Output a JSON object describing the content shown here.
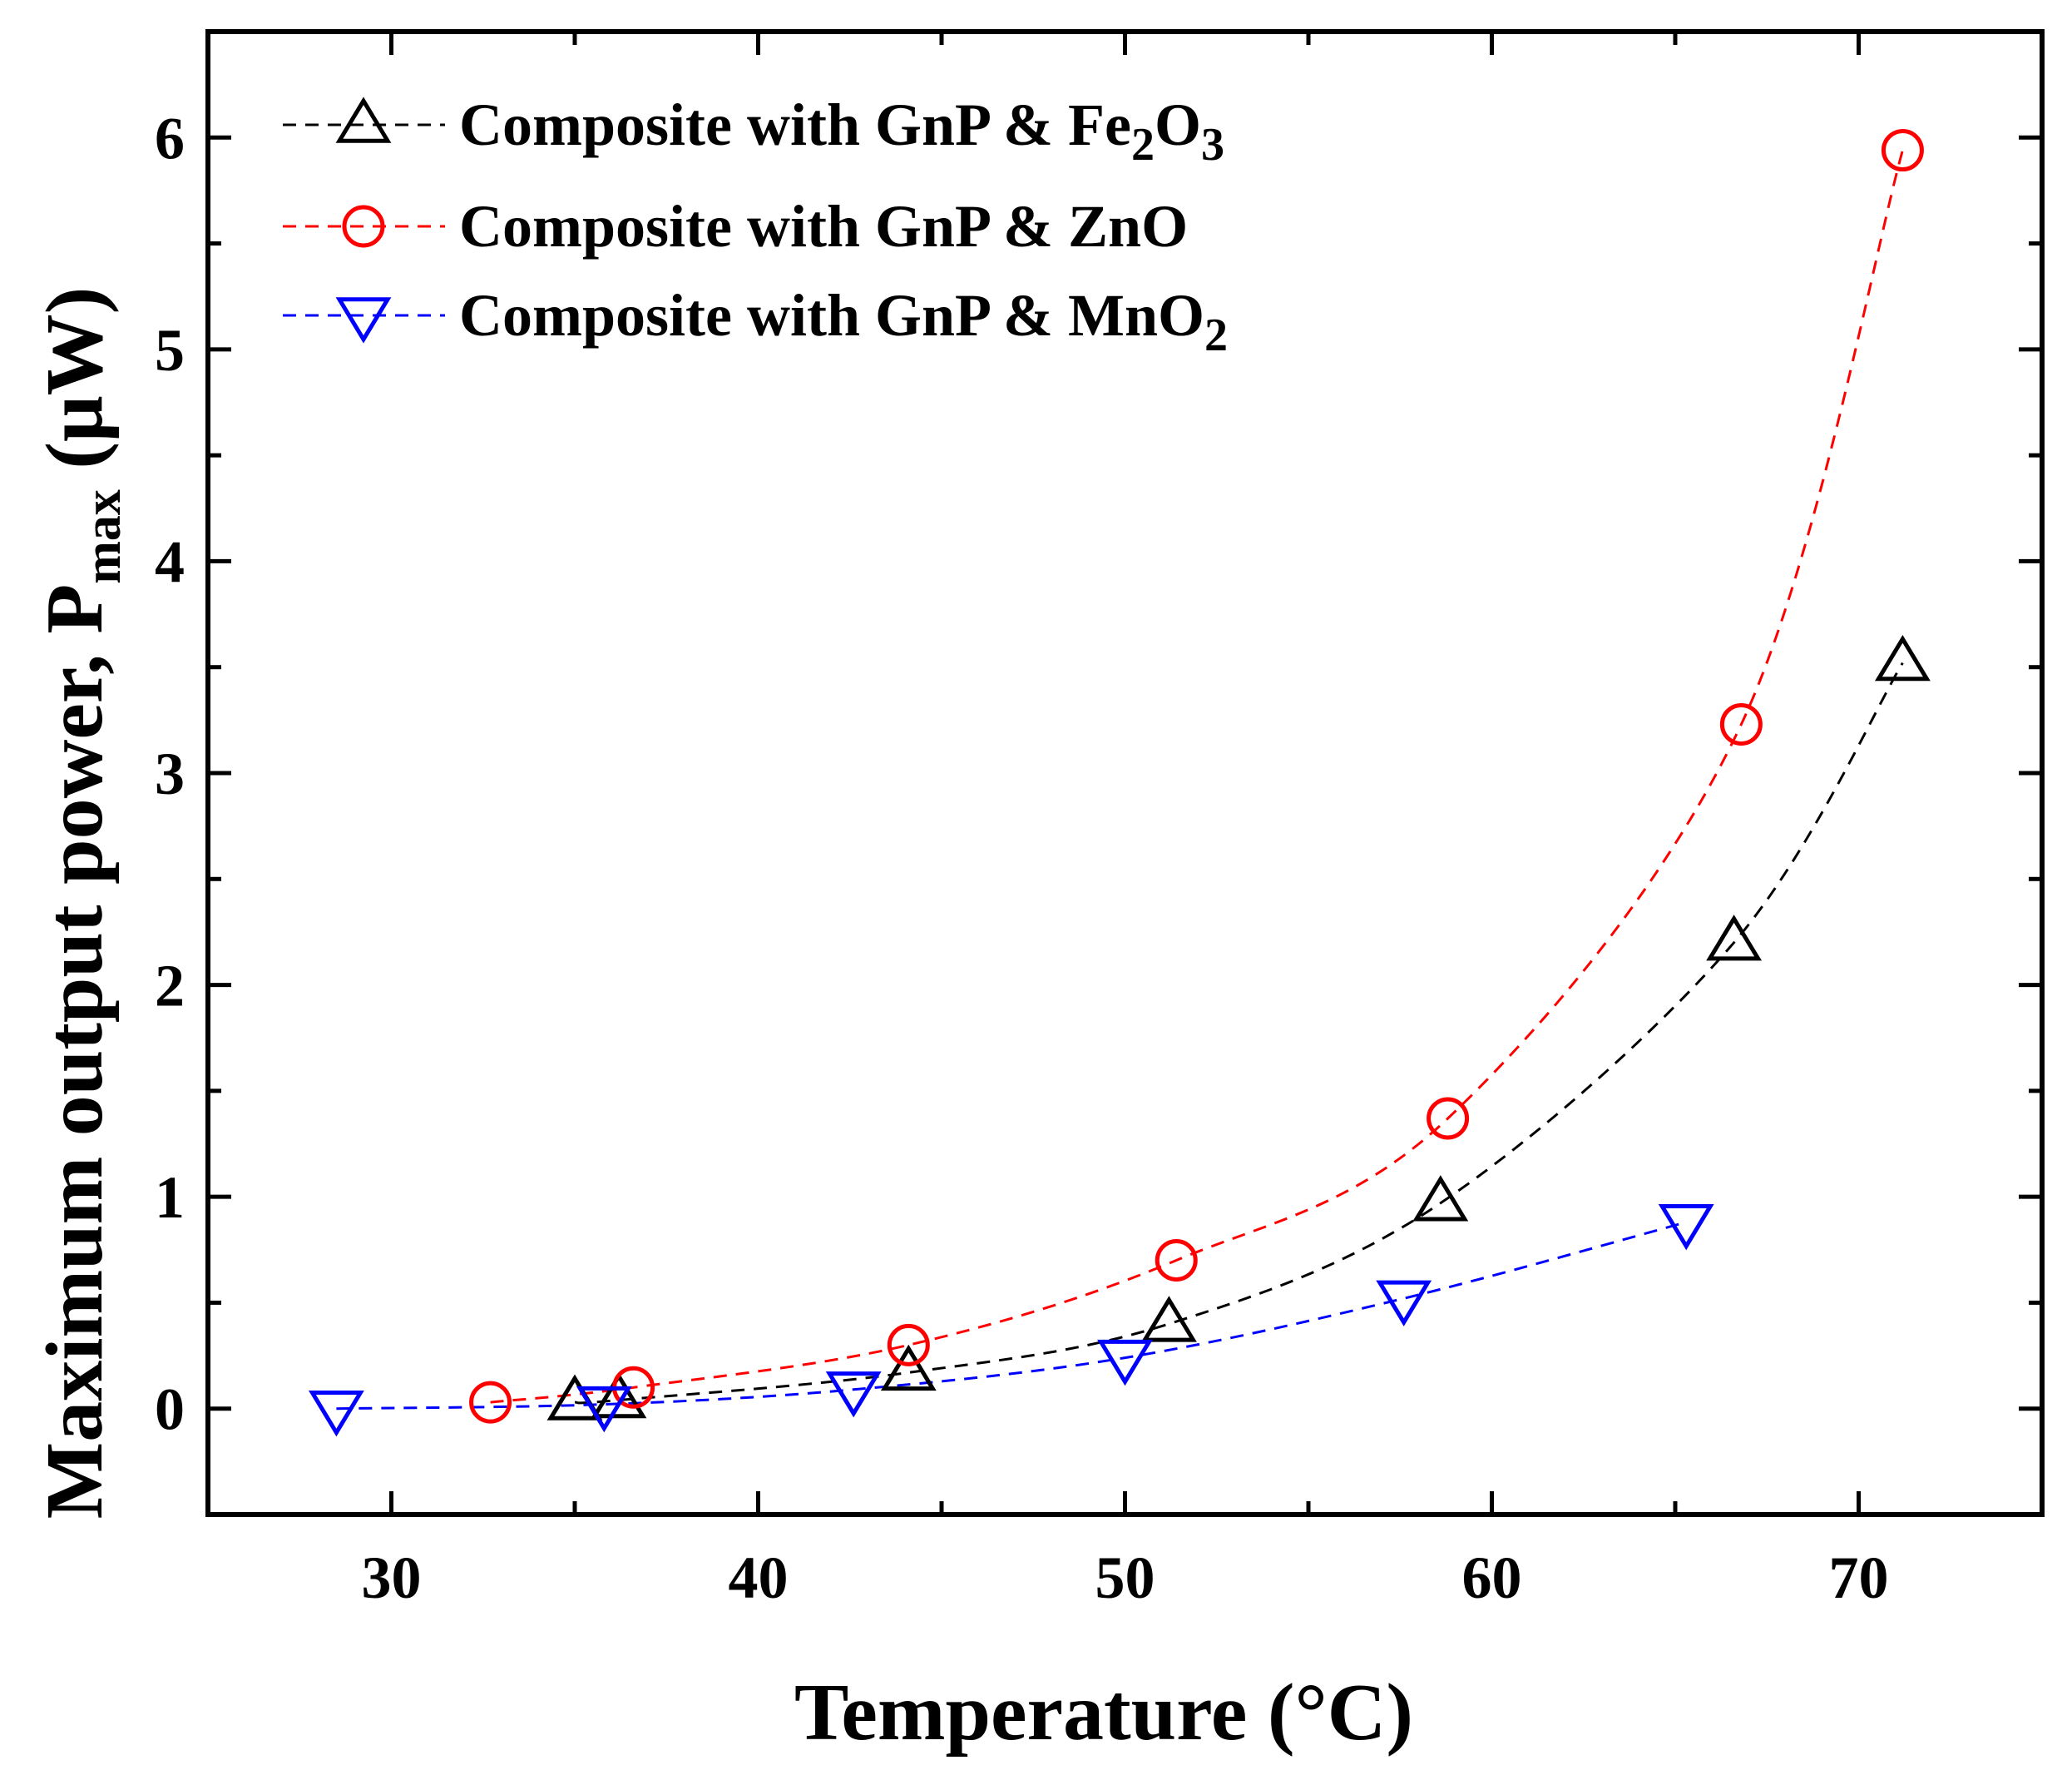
{
  "chart_data": {
    "type": "scatter",
    "title": "",
    "xlabel": "Temperature (°C)",
    "ylabel": {
      "prefix": "Maximum output power, P",
      "subscript": "max",
      "suffix": " (μW)"
    },
    "xlim": [
      25,
      75
    ],
    "ylim": [
      -0.5,
      6.5
    ],
    "xticks": [
      30,
      40,
      50,
      60,
      70
    ],
    "yticks": [
      0,
      1,
      2,
      3,
      4,
      5,
      6
    ],
    "grid": false,
    "legend_position": "top-left",
    "series": [
      {
        "name": "Composite with GnP & Fe2O3",
        "legend_parts": [
          {
            "t": "Composite with GnP & Fe",
            "sub": false
          },
          {
            "t": "2",
            "sub": true
          },
          {
            "t": "O",
            "sub": false
          },
          {
            "t": "3",
            "sub": true
          }
        ],
        "color": "#000000",
        "marker": "triangle-up",
        "line_style": "dashed",
        "x": [
          35.0,
          36.2,
          44.1,
          51.2,
          58.6,
          66.6,
          71.2
        ],
        "y": [
          0.03,
          0.04,
          0.17,
          0.4,
          0.97,
          2.2,
          3.52
        ]
      },
      {
        "name": "Composite with GnP & ZnO",
        "legend_parts": [
          {
            "t": "Composite with GnP & ZnO",
            "sub": false
          }
        ],
        "color": "#ff0000",
        "marker": "circle",
        "line_style": "dashed",
        "x": [
          32.7,
          36.6,
          44.1,
          51.4,
          58.8,
          66.8,
          71.2
        ],
        "y": [
          0.03,
          0.1,
          0.3,
          0.7,
          1.37,
          3.23,
          5.94
        ]
      },
      {
        "name": "Composite with GnP & MnO2",
        "legend_parts": [
          {
            "t": "Composite with GnP & MnO",
            "sub": false
          },
          {
            "t": "2",
            "sub": true
          }
        ],
        "color": "#0000ff",
        "marker": "triangle-down",
        "line_style": "dashed",
        "x": [
          28.5,
          35.8,
          42.6,
          50.0,
          57.6,
          65.3
        ],
        "y": [
          0.0,
          0.02,
          0.09,
          0.24,
          0.52,
          0.88
        ]
      }
    ]
  }
}
